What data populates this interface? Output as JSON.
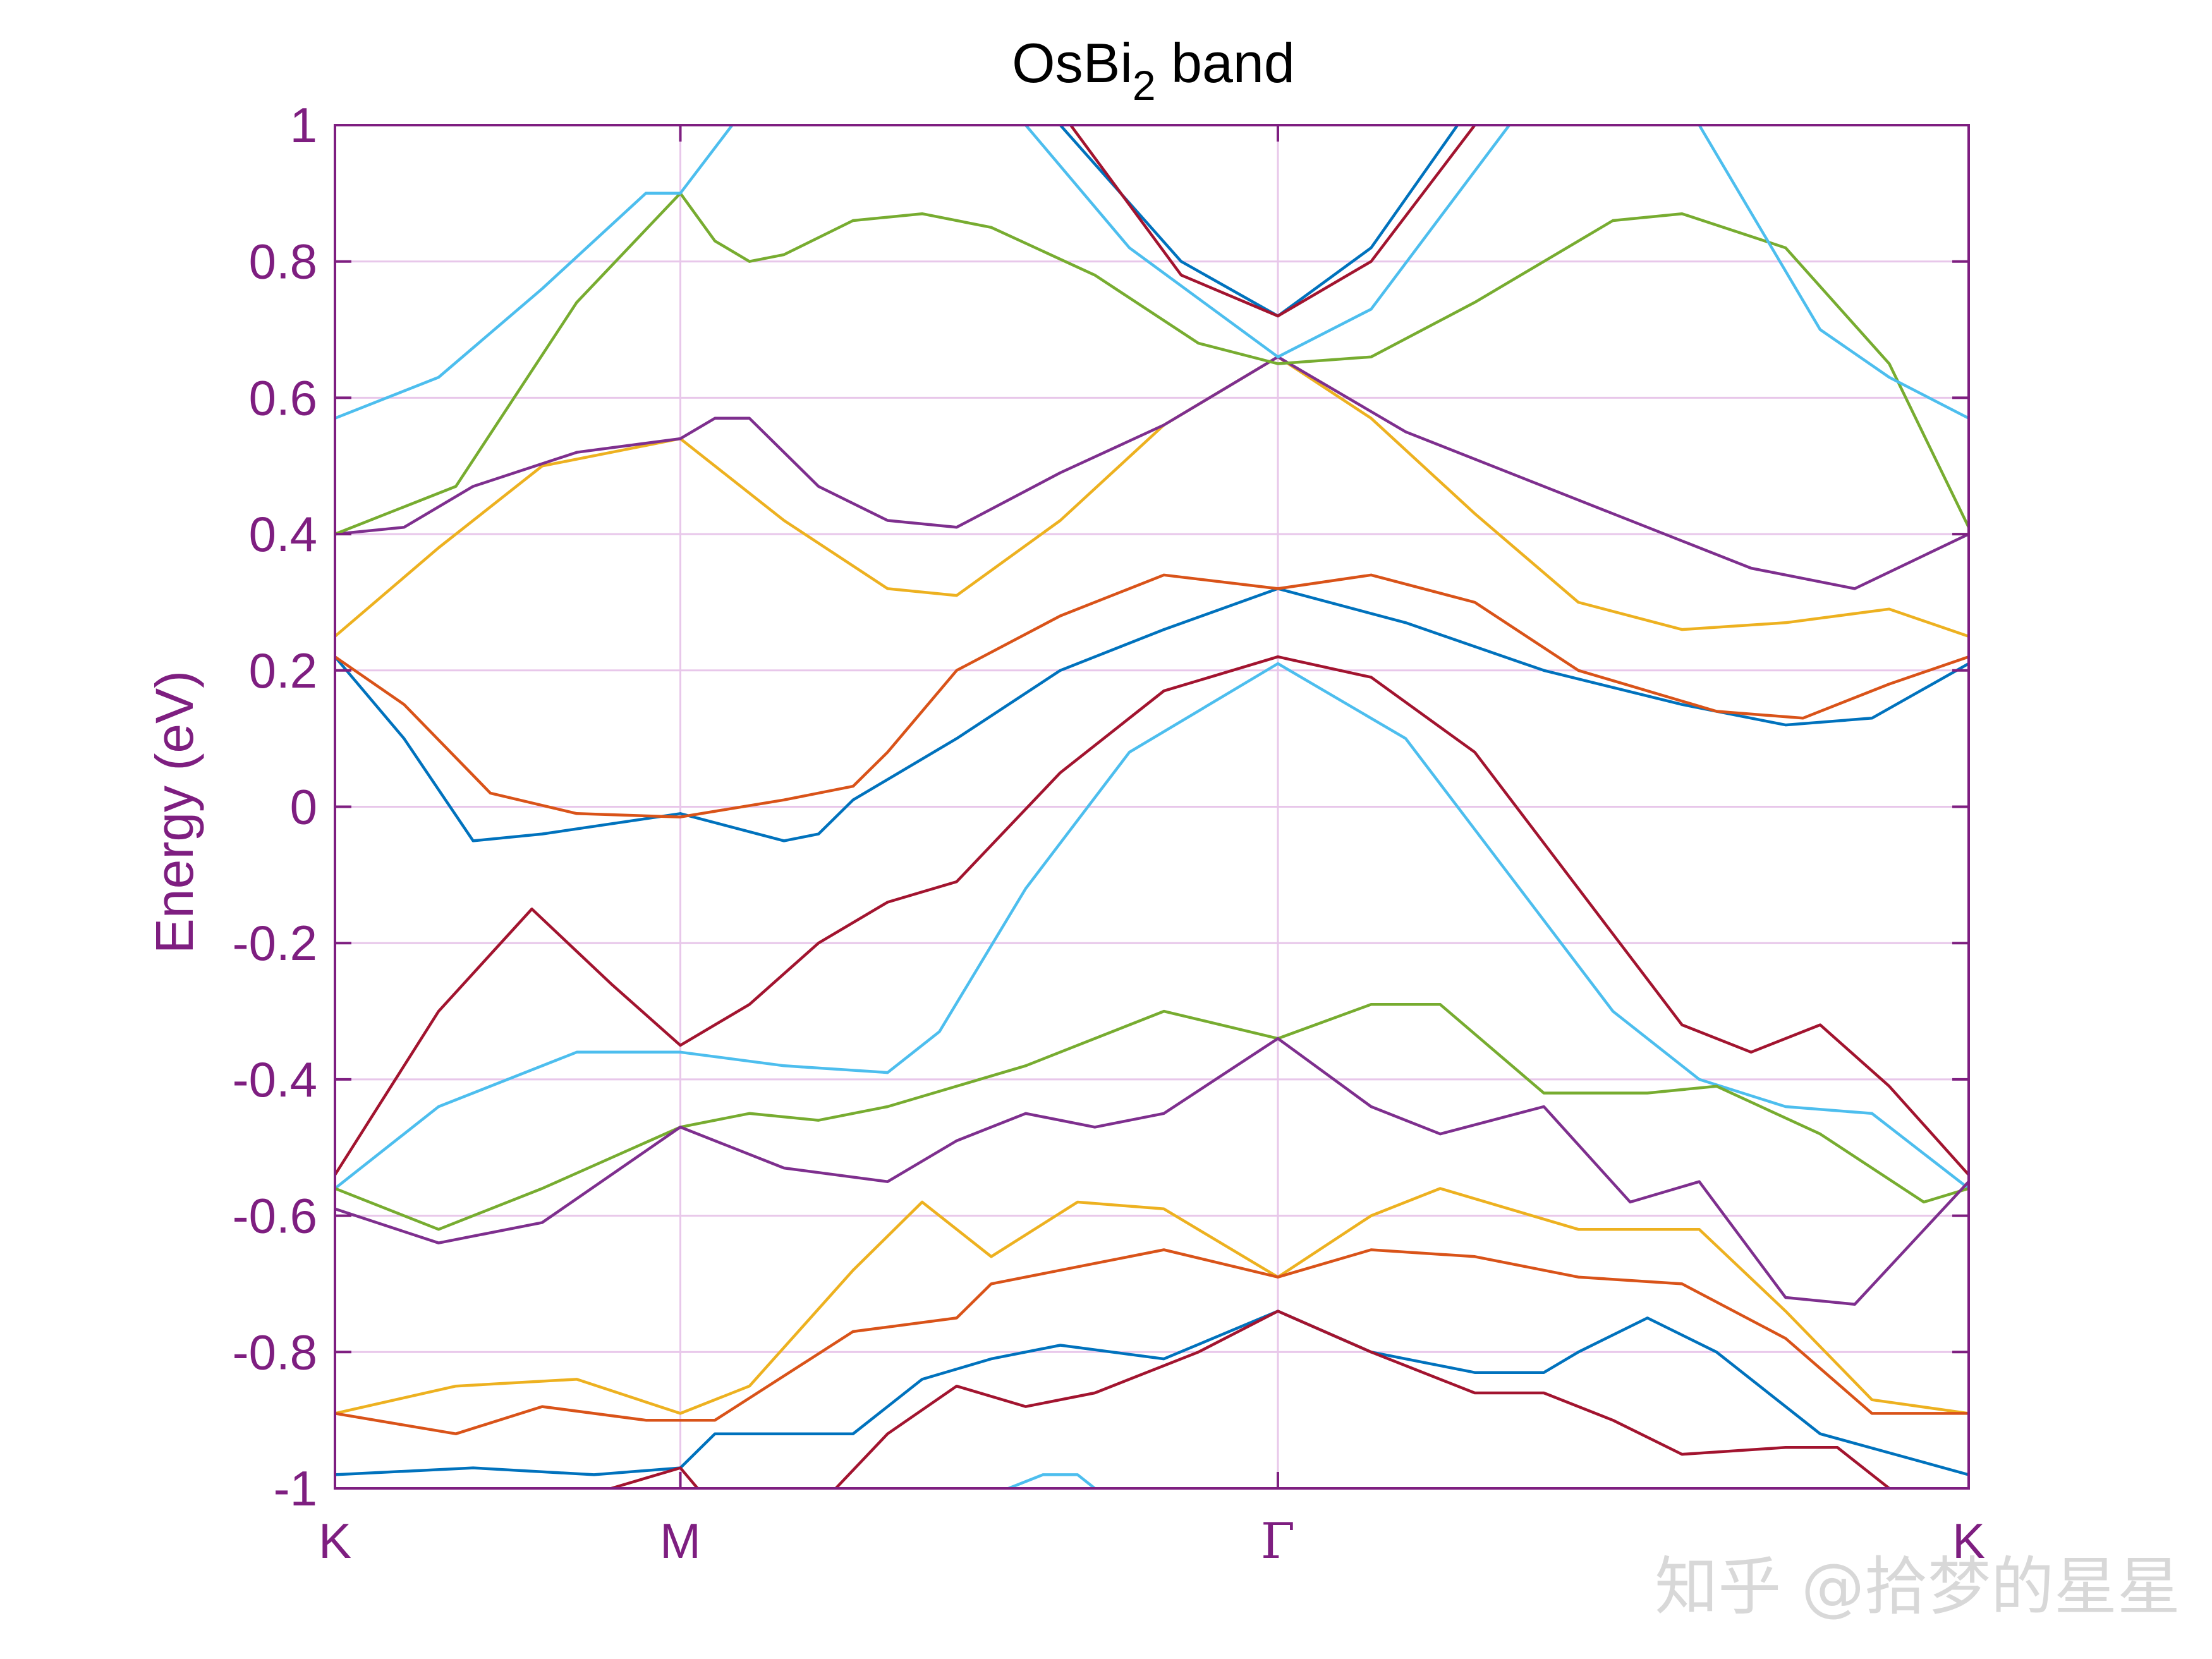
{
  "watermark": "知乎 @拾梦的星星",
  "chart_data": {
    "type": "line",
    "title": {
      "main": "OsBi",
      "subscript": "2",
      "suffix": " band"
    },
    "ylabel": "Energy (eV)",
    "xlabel": "",
    "ylim": [
      -1,
      1
    ],
    "yticks": [
      -1,
      -0.8,
      -0.6,
      -0.4,
      -0.2,
      0,
      0.2,
      0.4,
      0.6,
      0.8,
      1
    ],
    "ytick_labels": [
      "-1",
      "-0.8",
      "-0.6",
      "-0.4",
      "-0.2",
      "0",
      "0.2",
      "0.4",
      "0.6",
      "0.8",
      "1"
    ],
    "xlim": [
      0,
      4.73
    ],
    "kpath": [
      {
        "label": "K",
        "x": 0
      },
      {
        "label": "M",
        "x": 1
      },
      {
        "label": "Γ",
        "x": 2.73
      },
      {
        "label": "K",
        "x": 4.73
      }
    ],
    "grid": true,
    "axis_color": "#7e1e80",
    "grid_color": "#e8c7ea",
    "series": [
      {
        "color": "#0072bd",
        "points": [
          [
            0,
            0.22
          ],
          [
            0.2,
            0.1
          ],
          [
            0.4,
            -0.05
          ],
          [
            0.6,
            -0.04
          ],
          [
            1,
            -0.01
          ],
          [
            1.3,
            -0.05
          ],
          [
            1.4,
            -0.04
          ],
          [
            1.5,
            0.01
          ],
          [
            1.8,
            0.1
          ],
          [
            2.1,
            0.2
          ],
          [
            2.4,
            0.26
          ],
          [
            2.73,
            0.32
          ],
          [
            3.1,
            0.27
          ],
          [
            3.5,
            0.2
          ],
          [
            3.9,
            0.15
          ],
          [
            4.2,
            0.12
          ],
          [
            4.45,
            0.13
          ],
          [
            4.73,
            0.21
          ]
        ]
      },
      {
        "color": "#d95319",
        "points": [
          [
            0,
            0.22
          ],
          [
            0.2,
            0.15
          ],
          [
            0.45,
            0.02
          ],
          [
            0.7,
            -0.01
          ],
          [
            1,
            -0.015
          ],
          [
            1.3,
            0.01
          ],
          [
            1.5,
            0.03
          ],
          [
            1.6,
            0.08
          ],
          [
            1.8,
            0.2
          ],
          [
            2.1,
            0.28
          ],
          [
            2.4,
            0.34
          ],
          [
            2.73,
            0.32
          ],
          [
            3,
            0.34
          ],
          [
            3.3,
            0.3
          ],
          [
            3.6,
            0.2
          ],
          [
            4,
            0.14
          ],
          [
            4.25,
            0.13
          ],
          [
            4.5,
            0.18
          ],
          [
            4.73,
            0.22
          ]
        ]
      },
      {
        "color": "#edb120",
        "points": [
          [
            0,
            0.25
          ],
          [
            0.3,
            0.38
          ],
          [
            0.6,
            0.5
          ],
          [
            1,
            0.54
          ],
          [
            1.3,
            0.42
          ],
          [
            1.6,
            0.32
          ],
          [
            1.8,
            0.31
          ],
          [
            2.1,
            0.42
          ],
          [
            2.4,
            0.56
          ],
          [
            2.73,
            0.66
          ],
          [
            3,
            0.57
          ],
          [
            3.3,
            0.43
          ],
          [
            3.6,
            0.3
          ],
          [
            3.9,
            0.26
          ],
          [
            4.2,
            0.27
          ],
          [
            4.5,
            0.29
          ],
          [
            4.73,
            0.25
          ]
        ]
      },
      {
        "color": "#7e2f8e",
        "points": [
          [
            0,
            0.4
          ],
          [
            0.2,
            0.41
          ],
          [
            0.4,
            0.47
          ],
          [
            0.7,
            0.52
          ],
          [
            1,
            0.54
          ],
          [
            1.1,
            0.57
          ],
          [
            1.2,
            0.57
          ],
          [
            1.4,
            0.47
          ],
          [
            1.6,
            0.42
          ],
          [
            1.8,
            0.41
          ],
          [
            2.1,
            0.49
          ],
          [
            2.4,
            0.56
          ],
          [
            2.73,
            0.66
          ],
          [
            3.1,
            0.55
          ],
          [
            3.6,
            0.45
          ],
          [
            4.1,
            0.35
          ],
          [
            4.4,
            0.32
          ],
          [
            4.73,
            0.4
          ]
        ]
      },
      {
        "color": "#77ac30",
        "points": [
          [
            0,
            0.4
          ],
          [
            0.35,
            0.47
          ],
          [
            0.7,
            0.74
          ],
          [
            1,
            0.9
          ],
          [
            1.1,
            0.83
          ],
          [
            1.2,
            0.8
          ],
          [
            1.3,
            0.81
          ],
          [
            1.5,
            0.86
          ],
          [
            1.7,
            0.87
          ],
          [
            1.9,
            0.85
          ],
          [
            2.2,
            0.78
          ],
          [
            2.5,
            0.68
          ],
          [
            2.73,
            0.65
          ],
          [
            3,
            0.66
          ],
          [
            3.3,
            0.74
          ],
          [
            3.7,
            0.86
          ],
          [
            3.9,
            0.87
          ],
          [
            4.2,
            0.82
          ],
          [
            4.5,
            0.65
          ],
          [
            4.73,
            0.41
          ]
        ]
      },
      {
        "color": "#4dbeee",
        "points": [
          [
            0,
            0.57
          ],
          [
            0.3,
            0.63
          ],
          [
            0.6,
            0.76
          ],
          [
            0.9,
            0.9
          ],
          [
            1,
            0.9
          ],
          [
            1.15,
            1.0
          ]
        ]
      },
      {
        "color": "#4dbeee",
        "points": [
          [
            2,
            1.0
          ],
          [
            2.3,
            0.82
          ],
          [
            2.73,
            0.66
          ],
          [
            3,
            0.73
          ],
          [
            3.4,
            1.0
          ]
        ]
      },
      {
        "color": "#4dbeee",
        "points": [
          [
            3.95,
            1.0
          ],
          [
            4.3,
            0.7
          ],
          [
            4.5,
            0.63
          ],
          [
            4.73,
            0.57
          ]
        ]
      },
      {
        "color": "#0072bd",
        "points": [
          [
            2.1,
            1.0
          ],
          [
            2.45,
            0.8
          ],
          [
            2.73,
            0.72
          ],
          [
            3,
            0.82
          ],
          [
            3.25,
            1.0
          ]
        ]
      },
      {
        "color": "#a2142f",
        "points": [
          [
            2.13,
            1.0
          ],
          [
            2.45,
            0.78
          ],
          [
            2.73,
            0.72
          ],
          [
            3,
            0.8
          ],
          [
            3.3,
            1.0
          ]
        ]
      },
      {
        "color": "#a2142f",
        "points": [
          [
            0,
            -0.54
          ],
          [
            0.3,
            -0.3
          ],
          [
            0.57,
            -0.15
          ],
          [
            0.8,
            -0.26
          ],
          [
            1,
            -0.35
          ],
          [
            1.2,
            -0.29
          ],
          [
            1.4,
            -0.2
          ],
          [
            1.6,
            -0.14
          ],
          [
            1.8,
            -0.11
          ],
          [
            2.1,
            0.05
          ],
          [
            2.4,
            0.17
          ],
          [
            2.73,
            0.22
          ],
          [
            3,
            0.19
          ],
          [
            3.3,
            0.08
          ],
          [
            3.6,
            -0.12
          ],
          [
            3.9,
            -0.32
          ],
          [
            4.1,
            -0.36
          ],
          [
            4.3,
            -0.32
          ],
          [
            4.5,
            -0.41
          ],
          [
            4.73,
            -0.54
          ]
        ]
      },
      {
        "color": "#4dbeee",
        "points": [
          [
            0,
            -0.56
          ],
          [
            0.3,
            -0.44
          ],
          [
            0.7,
            -0.36
          ],
          [
            1,
            -0.36
          ],
          [
            1.3,
            -0.38
          ],
          [
            1.6,
            -0.39
          ],
          [
            1.75,
            -0.33
          ],
          [
            2,
            -0.12
          ],
          [
            2.3,
            0.08
          ],
          [
            2.73,
            0.21
          ],
          [
            3.1,
            0.1
          ],
          [
            3.4,
            -0.1
          ],
          [
            3.7,
            -0.3
          ],
          [
            3.95,
            -0.4
          ],
          [
            4.2,
            -0.44
          ],
          [
            4.45,
            -0.45
          ],
          [
            4.73,
            -0.56
          ]
        ]
      },
      {
        "color": "#77ac30",
        "points": [
          [
            0,
            -0.56
          ],
          [
            0.3,
            -0.62
          ],
          [
            0.6,
            -0.56
          ],
          [
            1,
            -0.47
          ],
          [
            1.2,
            -0.45
          ],
          [
            1.4,
            -0.46
          ],
          [
            1.6,
            -0.44
          ],
          [
            2,
            -0.38
          ],
          [
            2.4,
            -0.3
          ],
          [
            2.73,
            -0.34
          ],
          [
            3,
            -0.29
          ],
          [
            3.2,
            -0.29
          ],
          [
            3.5,
            -0.42
          ],
          [
            3.8,
            -0.42
          ],
          [
            4,
            -0.41
          ],
          [
            4.3,
            -0.48
          ],
          [
            4.6,
            -0.58
          ],
          [
            4.73,
            -0.56
          ]
        ]
      },
      {
        "color": "#7e2f8e",
        "points": [
          [
            0,
            -0.59
          ],
          [
            0.3,
            -0.64
          ],
          [
            0.6,
            -0.61
          ],
          [
            1,
            -0.47
          ],
          [
            1.3,
            -0.53
          ],
          [
            1.6,
            -0.55
          ],
          [
            1.8,
            -0.49
          ],
          [
            2,
            -0.45
          ],
          [
            2.2,
            -0.47
          ],
          [
            2.4,
            -0.45
          ],
          [
            2.73,
            -0.34
          ],
          [
            3,
            -0.44
          ],
          [
            3.2,
            -0.48
          ],
          [
            3.5,
            -0.44
          ],
          [
            3.75,
            -0.58
          ],
          [
            3.95,
            -0.55
          ],
          [
            4.2,
            -0.72
          ],
          [
            4.4,
            -0.73
          ],
          [
            4.73,
            -0.55
          ]
        ]
      },
      {
        "color": "#edb120",
        "points": [
          [
            0,
            -0.89
          ],
          [
            0.35,
            -0.85
          ],
          [
            0.7,
            -0.84
          ],
          [
            1,
            -0.89
          ],
          [
            1.2,
            -0.85
          ],
          [
            1.5,
            -0.68
          ],
          [
            1.7,
            -0.58
          ],
          [
            1.9,
            -0.66
          ],
          [
            2.15,
            -0.58
          ],
          [
            2.4,
            -0.59
          ],
          [
            2.73,
            -0.69
          ],
          [
            3,
            -0.6
          ],
          [
            3.2,
            -0.56
          ],
          [
            3.6,
            -0.62
          ],
          [
            3.95,
            -0.62
          ],
          [
            4.2,
            -0.74
          ],
          [
            4.45,
            -0.87
          ],
          [
            4.73,
            -0.89
          ]
        ]
      },
      {
        "color": "#d95319",
        "points": [
          [
            0,
            -0.89
          ],
          [
            0.35,
            -0.92
          ],
          [
            0.6,
            -0.88
          ],
          [
            0.9,
            -0.9
          ],
          [
            1.1,
            -0.9
          ],
          [
            1.5,
            -0.77
          ],
          [
            1.8,
            -0.75
          ],
          [
            1.9,
            -0.7
          ],
          [
            2.2,
            -0.67
          ],
          [
            2.4,
            -0.65
          ],
          [
            2.73,
            -0.69
          ],
          [
            3,
            -0.65
          ],
          [
            3.3,
            -0.66
          ],
          [
            3.6,
            -0.69
          ],
          [
            3.9,
            -0.7
          ],
          [
            4.2,
            -0.78
          ],
          [
            4.45,
            -0.89
          ],
          [
            4.73,
            -0.89
          ]
        ]
      },
      {
        "color": "#0072bd",
        "points": [
          [
            0,
            -0.98
          ],
          [
            0.4,
            -0.97
          ],
          [
            0.75,
            -0.98
          ],
          [
            1,
            -0.97
          ],
          [
            1.1,
            -0.92
          ],
          [
            1.5,
            -0.92
          ],
          [
            1.7,
            -0.84
          ],
          [
            1.9,
            -0.81
          ],
          [
            2.1,
            -0.79
          ],
          [
            2.4,
            -0.81
          ],
          [
            2.73,
            -0.74
          ],
          [
            3,
            -0.8
          ],
          [
            3.3,
            -0.83
          ],
          [
            3.5,
            -0.83
          ],
          [
            3.6,
            -0.8
          ],
          [
            3.8,
            -0.75
          ],
          [
            4,
            -0.8
          ],
          [
            4.3,
            -0.92
          ],
          [
            4.73,
            -0.98
          ]
        ]
      },
      {
        "color": "#a2142f",
        "points": [
          [
            0.8,
            -1.0
          ],
          [
            1,
            -0.97
          ],
          [
            1.05,
            -1.0
          ]
        ]
      },
      {
        "color": "#a2142f",
        "points": [
          [
            1.45,
            -1.0
          ],
          [
            1.6,
            -0.92
          ],
          [
            1.8,
            -0.85
          ],
          [
            2,
            -0.88
          ],
          [
            2.2,
            -0.86
          ],
          [
            2.5,
            -0.8
          ],
          [
            2.73,
            -0.74
          ],
          [
            3,
            -0.8
          ],
          [
            3.3,
            -0.86
          ],
          [
            3.5,
            -0.86
          ],
          [
            3.7,
            -0.9
          ],
          [
            3.9,
            -0.95
          ],
          [
            4.2,
            -0.94
          ],
          [
            4.35,
            -0.94
          ],
          [
            4.5,
            -1.0
          ]
        ]
      },
      {
        "color": "#4dbeee",
        "points": [
          [
            1.95,
            -1.0
          ],
          [
            2.05,
            -0.98
          ],
          [
            2.15,
            -0.98
          ],
          [
            2.2,
            -1.0
          ]
        ]
      }
    ]
  }
}
